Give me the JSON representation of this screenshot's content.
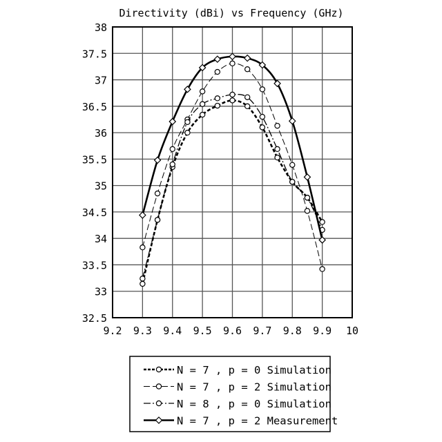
{
  "chart_data": {
    "type": "line",
    "title": "Directivity (dBi) vs Frequency (GHz)",
    "xlabel": "",
    "ylabel": "",
    "xlim": [
      9.2,
      10
    ],
    "ylim": [
      32.5,
      38
    ],
    "xticks": [
      9.2,
      9.3,
      9.4,
      9.5,
      9.6,
      9.7,
      9.8,
      9.9,
      10
    ],
    "xtick_labels": [
      "9.2",
      "9.3",
      "9.4",
      "9.5",
      "9.6",
      "9.7",
      "9.8",
      "9.9",
      "10"
    ],
    "yticks": [
      32.5,
      33,
      33.5,
      34,
      34.5,
      35,
      35.5,
      36,
      36.5,
      37,
      37.5,
      38
    ],
    "ytick_labels": [
      "32.5",
      "33",
      "33.5",
      "34",
      "34.5",
      "35",
      "35.5",
      "36",
      "36.5",
      "37",
      "37.5",
      "38"
    ],
    "grid": true,
    "legend_position": "bottom",
    "x": [
      9.3,
      9.35,
      9.4,
      9.45,
      9.5,
      9.55,
      9.6,
      9.65,
      9.7,
      9.75,
      9.8,
      9.85,
      9.9
    ],
    "series": [
      {
        "name": "N = 7 , p = 0 Simulation",
        "style": "dashed-thick",
        "marker": "circle",
        "values": [
          33.14,
          34.35,
          35.35,
          36.0,
          36.34,
          36.51,
          36.61,
          36.5,
          36.1,
          35.53,
          35.07,
          34.77,
          34.31
        ]
      },
      {
        "name": "N = 7 , p = 2 Simulation",
        "style": "dashed-thin",
        "marker": "circle",
        "values": [
          33.83,
          34.85,
          35.69,
          36.25,
          36.78,
          37.15,
          37.31,
          37.2,
          36.82,
          36.13,
          35.39,
          34.52,
          33.42
        ]
      },
      {
        "name": "N = 8 , p = 0 Simulation",
        "style": "dashdot",
        "marker": "circle",
        "values": [
          33.24,
          34.35,
          35.4,
          36.2,
          36.54,
          36.65,
          36.72,
          36.67,
          36.3,
          35.69,
          35.07,
          34.77,
          34.16
        ]
      },
      {
        "name": "N = 7 , p = 2 Measurement",
        "style": "solid-thick",
        "marker": "diamond",
        "values": [
          34.44,
          35.48,
          36.21,
          36.82,
          37.23,
          37.39,
          37.44,
          37.41,
          37.28,
          36.93,
          36.22,
          35.16,
          33.97
        ]
      }
    ]
  }
}
